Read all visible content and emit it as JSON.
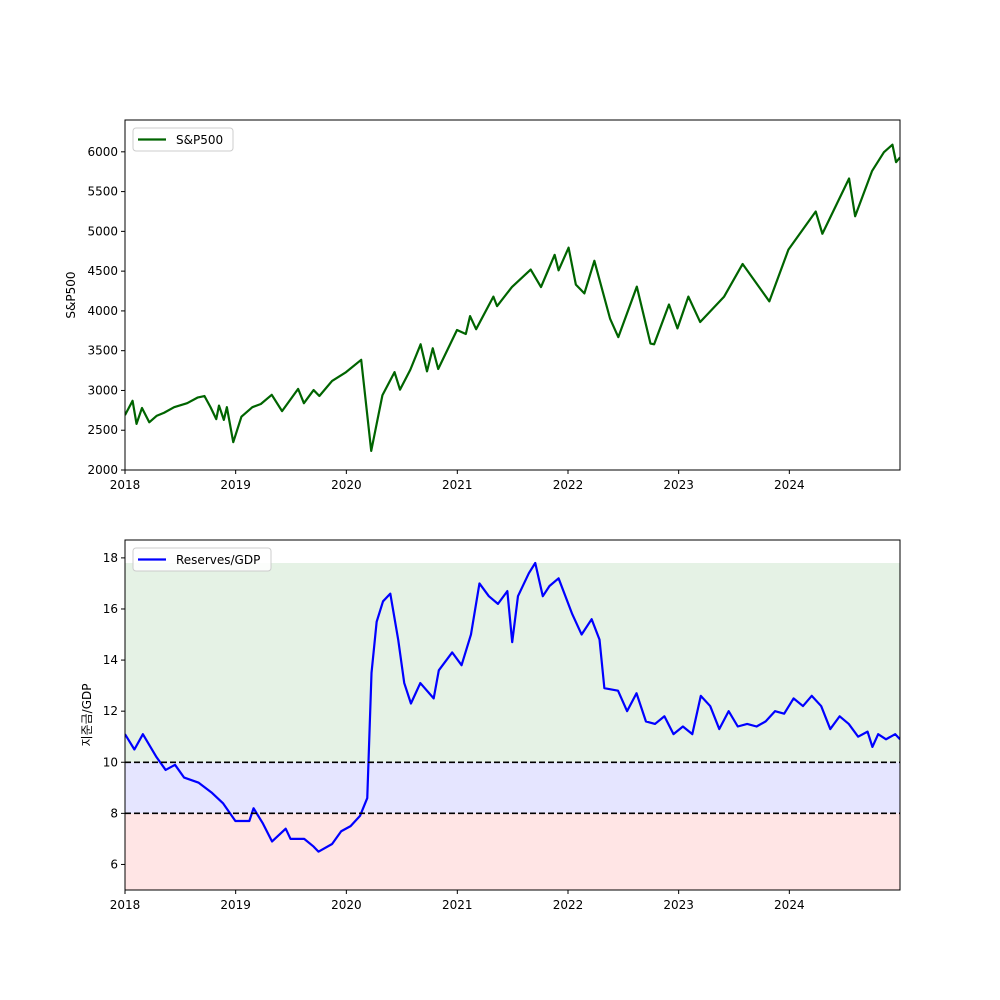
{
  "chart_data": [
    {
      "type": "line",
      "ylabel": "S&P500",
      "xlim": [
        "2018-01-01",
        "2024-12-31"
      ],
      "ylim": [
        2000,
        6400
      ],
      "x_ticks": [
        "2018",
        "2019",
        "2020",
        "2021",
        "2022",
        "2023",
        "2024"
      ],
      "y_ticks": [
        2000,
        2500,
        3000,
        3500,
        4000,
        4500,
        5000,
        5500,
        6000
      ],
      "legend": {
        "placement": "top-left",
        "entries": [
          "S&P500"
        ]
      },
      "grid": false,
      "series": [
        {
          "name": "S&P500",
          "color": "#006400",
          "points": [
            [
              "2018-01-01",
              2690
            ],
            [
              "2018-01-26",
              2870
            ],
            [
              "2018-02-08",
              2580
            ],
            [
              "2018-02-26",
              2780
            ],
            [
              "2018-03-22",
              2600
            ],
            [
              "2018-04-15",
              2680
            ],
            [
              "2018-05-10",
              2720
            ],
            [
              "2018-06-12",
              2790
            ],
            [
              "2018-07-25",
              2840
            ],
            [
              "2018-08-28",
              2910
            ],
            [
              "2018-09-20",
              2930
            ],
            [
              "2018-10-10",
              2790
            ],
            [
              "2018-10-29",
              2640
            ],
            [
              "2018-11-07",
              2810
            ],
            [
              "2018-11-23",
              2630
            ],
            [
              "2018-12-03",
              2790
            ],
            [
              "2018-12-24",
              2350
            ],
            [
              "2019-01-20",
              2670
            ],
            [
              "2019-02-25",
              2790
            ],
            [
              "2019-03-25",
              2830
            ],
            [
              "2019-04-30",
              2945
            ],
            [
              "2019-06-03",
              2740
            ],
            [
              "2019-07-26",
              3020
            ],
            [
              "2019-08-14",
              2840
            ],
            [
              "2019-09-15",
              3005
            ],
            [
              "2019-10-04",
              2930
            ],
            [
              "2019-11-15",
              3120
            ],
            [
              "2019-12-31",
              3230
            ],
            [
              "2020-02-19",
              3385
            ],
            [
              "2020-03-23",
              2240
            ],
            [
              "2020-04-29",
              2940
            ],
            [
              "2020-06-08",
              3230
            ],
            [
              "2020-06-26",
              3010
            ],
            [
              "2020-07-30",
              3260
            ],
            [
              "2020-09-02",
              3580
            ],
            [
              "2020-09-23",
              3240
            ],
            [
              "2020-10-12",
              3530
            ],
            [
              "2020-10-30",
              3270
            ],
            [
              "2020-12-31",
              3760
            ],
            [
              "2021-01-29",
              3710
            ],
            [
              "2021-02-12",
              3935
            ],
            [
              "2021-03-04",
              3770
            ],
            [
              "2021-04-30",
              4180
            ],
            [
              "2021-05-12",
              4060
            ],
            [
              "2021-06-30",
              4300
            ],
            [
              "2021-08-31",
              4520
            ],
            [
              "2021-10-04",
              4300
            ],
            [
              "2021-11-18",
              4705
            ],
            [
              "2021-12-01",
              4510
            ],
            [
              "2022-01-03",
              4795
            ],
            [
              "2022-01-27",
              4330
            ],
            [
              "2022-02-24",
              4220
            ],
            [
              "2022-03-29",
              4630
            ],
            [
              "2022-05-20",
              3900
            ],
            [
              "2022-06-16",
              3670
            ],
            [
              "2022-08-16",
              4305
            ],
            [
              "2022-09-30",
              3590
            ],
            [
              "2022-10-12",
              3580
            ],
            [
              "2022-11-30",
              4080
            ],
            [
              "2022-12-28",
              3780
            ],
            [
              "2023-02-02",
              4180
            ],
            [
              "2023-03-13",
              3860
            ],
            [
              "2023-05-31",
              4180
            ],
            [
              "2023-07-31",
              4590
            ],
            [
              "2023-10-27",
              4120
            ],
            [
              "2023-12-29",
              4770
            ],
            [
              "2024-03-28",
              5250
            ],
            [
              "2024-04-19",
              4970
            ],
            [
              "2024-07-16",
              5665
            ],
            [
              "2024-08-05",
              5190
            ],
            [
              "2024-09-30",
              5760
            ],
            [
              "2024-11-08",
              5995
            ],
            [
              "2024-12-06",
              6090
            ],
            [
              "2024-12-18",
              5870
            ],
            [
              "2024-12-31",
              5930
            ]
          ]
        }
      ]
    },
    {
      "type": "line",
      "ylabel": "지준금/GDP",
      "xlim": [
        "2018-01-01",
        "2024-12-31"
      ],
      "ylim": [
        5,
        18.7
      ],
      "x_ticks": [
        "2018",
        "2019",
        "2020",
        "2021",
        "2022",
        "2023",
        "2024"
      ],
      "y_ticks": [
        6,
        8,
        10,
        12,
        14,
        16,
        18
      ],
      "legend": {
        "placement": "top-left",
        "entries": [
          "Reserves/GDP"
        ]
      },
      "grid": false,
      "bands": [
        {
          "from": 5,
          "to": 8,
          "color": "#ffe5e5"
        },
        {
          "from": 8,
          "to": 10,
          "color": "#e5e5ff"
        },
        {
          "from": 10,
          "to": 17.8,
          "color": "#e5f2e5"
        }
      ],
      "hlines": [
        8,
        10
      ],
      "series": [
        {
          "name": "Reserves/GDP",
          "color": "#0000ff",
          "points": [
            [
              "2018-01-01",
              11.1
            ],
            [
              "2018-02-01",
              10.5
            ],
            [
              "2018-03-01",
              11.1
            ],
            [
              "2018-04-15",
              10.2
            ],
            [
              "2018-05-15",
              9.7
            ],
            [
              "2018-06-15",
              9.9
            ],
            [
              "2018-07-15",
              9.4
            ],
            [
              "2018-09-01",
              9.2
            ],
            [
              "2018-10-15",
              8.8
            ],
            [
              "2018-11-20",
              8.4
            ],
            [
              "2018-12-31",
              7.7
            ],
            [
              "2019-02-15",
              7.7
            ],
            [
              "2019-03-01",
              8.2
            ],
            [
              "2019-04-01",
              7.6
            ],
            [
              "2019-05-01",
              6.9
            ],
            [
              "2019-06-15",
              7.4
            ],
            [
              "2019-07-01",
              7.0
            ],
            [
              "2019-08-15",
              7.0
            ],
            [
              "2019-09-15",
              6.7
            ],
            [
              "2019-10-01",
              6.5
            ],
            [
              "2019-11-15",
              6.8
            ],
            [
              "2019-12-15",
              7.3
            ],
            [
              "2020-01-15",
              7.5
            ],
            [
              "2020-02-15",
              7.9
            ],
            [
              "2020-03-10",
              8.6
            ],
            [
              "2020-03-24",
              13.5
            ],
            [
              "2020-04-10",
              15.5
            ],
            [
              "2020-05-01",
              16.3
            ],
            [
              "2020-05-25",
              16.6
            ],
            [
              "2020-06-20",
              14.8
            ],
            [
              "2020-07-10",
              13.1
            ],
            [
              "2020-08-01",
              12.3
            ],
            [
              "2020-09-01",
              13.1
            ],
            [
              "2020-10-15",
              12.5
            ],
            [
              "2020-11-01",
              13.6
            ],
            [
              "2020-12-15",
              14.3
            ],
            [
              "2021-01-15",
              13.8
            ],
            [
              "2021-02-15",
              15.0
            ],
            [
              "2021-03-15",
              17.0
            ],
            [
              "2021-04-15",
              16.5
            ],
            [
              "2021-05-15",
              16.2
            ],
            [
              "2021-06-15",
              16.7
            ],
            [
              "2021-07-01",
              14.7
            ],
            [
              "2021-07-20",
              16.5
            ],
            [
              "2021-08-25",
              17.4
            ],
            [
              "2021-09-15",
              17.8
            ],
            [
              "2021-10-10",
              16.5
            ],
            [
              "2021-11-01",
              16.9
            ],
            [
              "2021-12-01",
              17.2
            ],
            [
              "2022-01-15",
              15.8
            ],
            [
              "2022-02-15",
              15.0
            ],
            [
              "2022-03-20",
              15.6
            ],
            [
              "2022-04-15",
              14.8
            ],
            [
              "2022-05-01",
              12.9
            ],
            [
              "2022-06-15",
              12.8
            ],
            [
              "2022-07-15",
              12.0
            ],
            [
              "2022-08-15",
              12.7
            ],
            [
              "2022-09-15",
              11.6
            ],
            [
              "2022-10-15",
              11.5
            ],
            [
              "2022-11-15",
              11.8
            ],
            [
              "2022-12-15",
              11.1
            ],
            [
              "2023-01-15",
              11.4
            ],
            [
              "2023-02-15",
              11.1
            ],
            [
              "2023-03-15",
              12.6
            ],
            [
              "2023-04-15",
              12.2
            ],
            [
              "2023-05-15",
              11.3
            ],
            [
              "2023-06-15",
              12.0
            ],
            [
              "2023-07-15",
              11.4
            ],
            [
              "2023-08-15",
              11.5
            ],
            [
              "2023-09-15",
              11.4
            ],
            [
              "2023-10-15",
              11.6
            ],
            [
              "2023-11-15",
              12.0
            ],
            [
              "2023-12-15",
              11.9
            ],
            [
              "2024-01-15",
              12.5
            ],
            [
              "2024-02-15",
              12.2
            ],
            [
              "2024-03-15",
              12.6
            ],
            [
              "2024-04-15",
              12.2
            ],
            [
              "2024-05-15",
              11.3
            ],
            [
              "2024-06-15",
              11.8
            ],
            [
              "2024-07-15",
              11.5
            ],
            [
              "2024-08-15",
              11.0
            ],
            [
              "2024-09-15",
              11.2
            ],
            [
              "2024-10-01",
              10.6
            ],
            [
              "2024-10-20",
              11.1
            ],
            [
              "2024-11-15",
              10.9
            ],
            [
              "2024-12-15",
              11.1
            ],
            [
              "2024-12-31",
              10.9
            ]
          ]
        }
      ]
    }
  ]
}
